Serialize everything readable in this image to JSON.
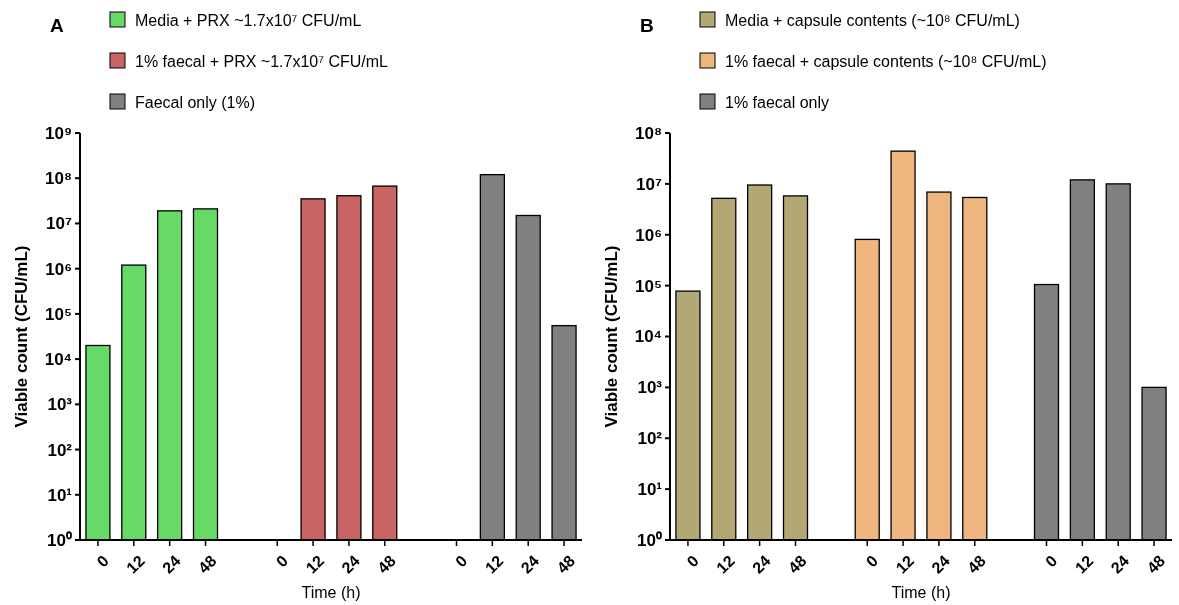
{
  "chart_data": [
    {
      "type": "bar",
      "title": "A",
      "xlabel": "Time (h)",
      "ylabel": "Viable count (CFU/mL)",
      "categories": [
        "0",
        "12",
        "24",
        "48",
        null,
        "0",
        "12",
        "24",
        "48",
        null,
        "0",
        "12",
        "24",
        "48"
      ],
      "log": true,
      "ylim": [
        1,
        1000000000
      ],
      "yticks": [
        {
          "value": 1,
          "label": "10⁰"
        },
        {
          "value": 10,
          "label": "10¹"
        },
        {
          "value": 100,
          "label": "10²"
        },
        {
          "value": 1000,
          "label": "10³"
        },
        {
          "value": 10000,
          "label": "10⁴"
        },
        {
          "value": 100000,
          "label": "10⁵"
        },
        {
          "value": 1000000,
          "label": "10⁶"
        },
        {
          "value": 10000000,
          "label": "10⁷"
        },
        {
          "value": 100000000,
          "label": "10⁸"
        },
        {
          "value": 1000000000,
          "label": "10⁹"
        }
      ],
      "legend": "top left",
      "grid": false,
      "series": [
        {
          "name": "Media + PRX ~1.7x10⁷ CFU/mL",
          "color": "#66d966",
          "values": [
            20000,
            1200000,
            19000000,
            21000000,
            null,
            null,
            null,
            null,
            null,
            null,
            null,
            null,
            null,
            null
          ]
        },
        {
          "name": "1% faecal + PRX ~1.7x10⁷ CFU/mL",
          "color": "#c86464",
          "values": [
            null,
            null,
            null,
            null,
            null,
            null,
            35000000,
            41000000,
            67000000,
            null,
            null,
            null,
            null,
            null
          ]
        },
        {
          "name": "Faecal only (1%)",
          "color": "#808080",
          "values": [
            null,
            null,
            null,
            null,
            null,
            null,
            null,
            null,
            null,
            null,
            null,
            120000000,
            15000000,
            55000
          ]
        }
      ]
    },
    {
      "type": "bar",
      "title": "B",
      "xlabel": "Time (h)",
      "ylabel": "Viable count (CFU/mL)",
      "categories": [
        "0",
        "12",
        "24",
        "48",
        null,
        "0",
        "12",
        "24",
        "48",
        null,
        "0",
        "12",
        "24",
        "48"
      ],
      "log": true,
      "ylim": [
        1,
        100000000
      ],
      "yticks": [
        {
          "value": 1,
          "label": "10⁰"
        },
        {
          "value": 10,
          "label": "10¹"
        },
        {
          "value": 100,
          "label": "10²"
        },
        {
          "value": 1000,
          "label": "10³"
        },
        {
          "value": 10000,
          "label": "10⁴"
        },
        {
          "value": 100000,
          "label": "10⁵"
        },
        {
          "value": 1000000,
          "label": "10⁶"
        },
        {
          "value": 10000000,
          "label": "10⁷"
        },
        {
          "value": 100000000,
          "label": "10⁸"
        }
      ],
      "legend": "top left",
      "grid": false,
      "series": [
        {
          "name": "Media + capsule contents (~10⁸ CFU/mL)",
          "color": "#b3a874",
          "values": [
            78000,
            5200000,
            9500000,
            5800000,
            null,
            null,
            null,
            null,
            null,
            null,
            null,
            null,
            null,
            null
          ]
        },
        {
          "name": "1% faecal + capsule contents (~10⁸ CFU/mL)",
          "color": "#f0b67f",
          "values": [
            null,
            null,
            null,
            null,
            null,
            810000,
            44000000,
            6900000,
            5400000,
            null,
            null,
            null,
            null,
            null
          ]
        },
        {
          "name": "1% faecal only",
          "color": "#808080",
          "values": [
            null,
            null,
            null,
            null,
            null,
            null,
            null,
            null,
            null,
            null,
            105000,
            12000000,
            10000000,
            1000
          ]
        }
      ]
    }
  ]
}
